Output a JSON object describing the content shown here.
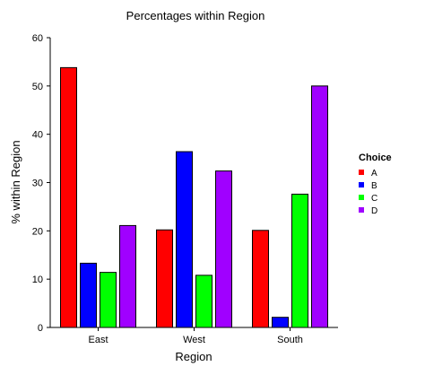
{
  "chart_data": {
    "type": "bar",
    "title": "Percentages within Region",
    "xlabel": "Region",
    "ylabel": "% within Region",
    "categories": [
      "East",
      "West",
      "South"
    ],
    "ylim": [
      0,
      60
    ],
    "yticks": [
      0,
      10,
      20,
      30,
      40,
      50,
      60
    ],
    "legend_title": "Choice",
    "legend_position": "right",
    "grid": false,
    "series": [
      {
        "name": "A",
        "color": "#ff0000",
        "values": [
          53.8,
          20.2,
          20.1
        ]
      },
      {
        "name": "B",
        "color": "#0000ff",
        "values": [
          13.3,
          36.4,
          2.1
        ]
      },
      {
        "name": "C",
        "color": "#00ff00",
        "values": [
          11.4,
          10.8,
          27.6
        ]
      },
      {
        "name": "D",
        "color": "#a000ff",
        "values": [
          21.1,
          32.4,
          50.0
        ]
      }
    ]
  }
}
